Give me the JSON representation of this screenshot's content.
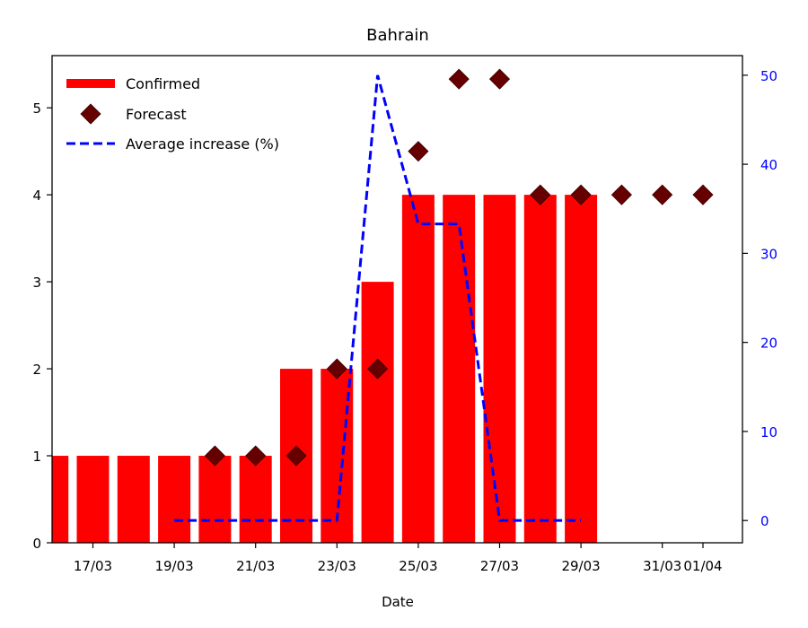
{
  "chart_data": {
    "type": "bar",
    "title": "Bahrain",
    "xlabel": "Date",
    "ylabel": "",
    "y2label": "",
    "ylim": [
      0,
      5.6
    ],
    "y2lim": [
      -2.5,
      52.2
    ],
    "y_ticks": [
      0,
      1,
      2,
      3,
      4,
      5
    ],
    "y2_ticks": [
      0,
      10,
      20,
      30,
      40,
      50
    ],
    "x_tick_labels": [
      {
        "label": "17/03",
        "day": 0
      },
      {
        "label": "19/03",
        "day": 2
      },
      {
        "label": "21/03",
        "day": 4
      },
      {
        "label": "23/03",
        "day": 6
      },
      {
        "label": "25/03",
        "day": 8
      },
      {
        "label": "27/03",
        "day": 10
      },
      {
        "label": "29/03",
        "day": 12
      },
      {
        "label": "31/03",
        "day": 14
      },
      {
        "label": "01/04",
        "day": 15
      }
    ],
    "legend_position": "top-left",
    "colors": {
      "confirmed": "#ff0000",
      "forecast": "#660000",
      "average": "#0000ff",
      "right_axis": "#0000ff"
    },
    "series": [
      {
        "name": "Confirmed",
        "kind": "bar",
        "axis": "left",
        "x": [
          "16/03",
          "17/03",
          "18/03",
          "19/03",
          "20/03",
          "21/03",
          "22/03",
          "23/03",
          "24/03",
          "25/03",
          "26/03",
          "27/03",
          "28/03",
          "29/03"
        ],
        "values": [
          1,
          1,
          1,
          1,
          1,
          1,
          2,
          2,
          3,
          4,
          4,
          4,
          4,
          4
        ]
      },
      {
        "name": "Forecast",
        "kind": "scatter",
        "axis": "left",
        "x": [
          "20/03",
          "21/03",
          "22/03",
          "23/03",
          "24/03",
          "25/03",
          "26/03",
          "27/03",
          "28/03",
          "29/03",
          "30/03",
          "31/03",
          "01/04"
        ],
        "values": [
          1,
          1,
          1,
          2,
          2,
          4.5,
          5.33,
          5.33,
          4,
          4,
          4,
          4,
          4
        ]
      },
      {
        "name": "Average increase (%)",
        "kind": "line",
        "axis": "right",
        "x": [
          "19/03",
          "20/03",
          "21/03",
          "22/03",
          "23/03",
          "24/03",
          "25/03",
          "26/03",
          "27/03",
          "28/03",
          "29/03"
        ],
        "values": [
          0,
          0,
          0,
          0,
          0,
          50,
          33.3,
          33.3,
          0,
          0,
          0
        ]
      }
    ]
  }
}
